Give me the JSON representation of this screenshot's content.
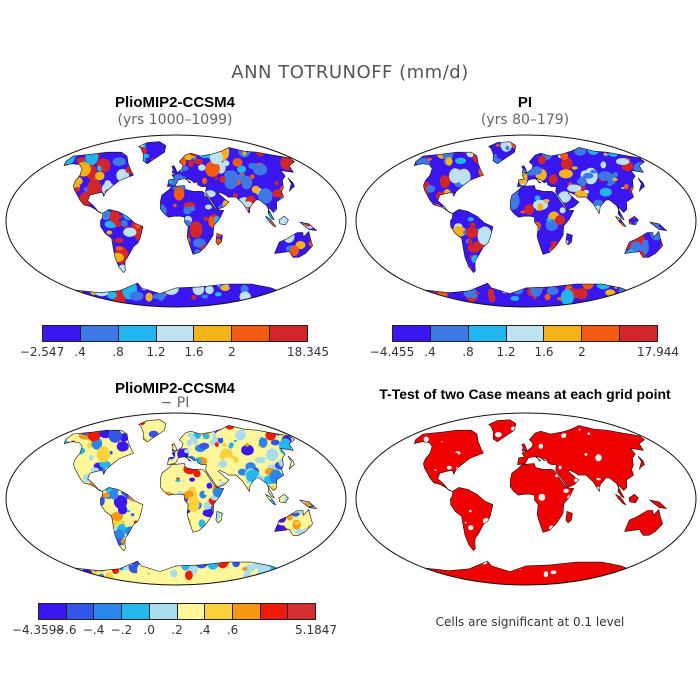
{
  "figure": {
    "title": "ANN TOTRUNOFF (mm/d)"
  },
  "panels": [
    {
      "title": "PlioMIP2-CCSM4",
      "subtitle": "(yrs 1000–1099)",
      "colorbar": {
        "colors": [
          "#3a16f0",
          "#3e78e6",
          "#21b4ee",
          "#bde3f2",
          "#f6b219",
          "#f45a12",
          "#d3262b"
        ],
        "labels": [
          "−2.547",
          ".4",
          ".8",
          "1.2",
          "1.6",
          "2",
          "18.345"
        ]
      }
    },
    {
      "title": "PI",
      "subtitle": "(yrs 80–179)",
      "colorbar": {
        "colors": [
          "#3a16f0",
          "#3e78e6",
          "#21b4ee",
          "#bde3f2",
          "#f6b219",
          "#f45a12",
          "#d3262b"
        ],
        "labels": [
          "−4.455",
          ".4",
          ".8",
          "1.2",
          "1.6",
          "2",
          "17.944"
        ]
      }
    },
    {
      "title": "PlioMIP2-CCSM4",
      "subtitle": "− PI",
      "colorbar": {
        "colors": [
          "#3a16f0",
          "#3256e8",
          "#2b86ec",
          "#25b8f0",
          "#a9dcec",
          "#fff79a",
          "#fcd23c",
          "#f79814",
          "#ee1b0b",
          "#d32f32"
        ],
        "labels": [
          "−4.3598",
          "−.6",
          "−.4",
          "−.2",
          ".0",
          ".2",
          ".4",
          ".6",
          "5.1847"
        ]
      }
    },
    {
      "title": "T-Test of two Case means at each grid point",
      "note": "Cells are significant at 0.1 level",
      "significant_color": "#ee0000"
    }
  ]
}
